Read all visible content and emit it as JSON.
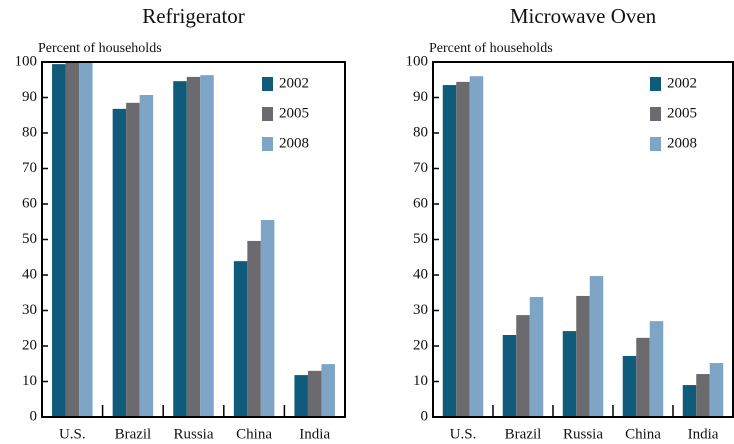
{
  "chart_data": [
    {
      "type": "bar",
      "title": "Refrigerator",
      "y_label": "Percent of households",
      "categories": [
        "U.S.",
        "Brazil",
        "Russia",
        "China",
        "India"
      ],
      "series": [
        {
          "name": "2002",
          "color": "#0f5b7b",
          "values": [
            99.4,
            86.8,
            94.6,
            43.9,
            11.8
          ]
        },
        {
          "name": "2005",
          "color": "#6b6b6f",
          "values": [
            100,
            88.5,
            95.8,
            49.6,
            13
          ]
        },
        {
          "name": "2008",
          "color": "#7fa5c6",
          "values": [
            100,
            90.7,
            96.3,
            55.5,
            14.9
          ]
        }
      ],
      "ylim": [
        0,
        100
      ],
      "yticks": [
        0,
        10,
        20,
        30,
        40,
        50,
        60,
        70,
        80,
        90,
        100
      ],
      "legend": "upper right"
    },
    {
      "type": "bar",
      "title": "Microwave Oven",
      "y_label": "Percent of households",
      "categories": [
        "U.S.",
        "Brazil",
        "Russia",
        "China",
        "India"
      ],
      "series": [
        {
          "name": "2002",
          "color": "#0f5b7b",
          "values": [
            93.5,
            23.1,
            24.2,
            17.2,
            9
          ]
        },
        {
          "name": "2005",
          "color": "#6b6b6f",
          "values": [
            94.4,
            28.7,
            34.1,
            22.3,
            12.1
          ]
        },
        {
          "name": "2008",
          "color": "#7fa5c6",
          "values": [
            96,
            33.8,
            39.7,
            27,
            15.2
          ]
        }
      ],
      "ylim": [
        0,
        100
      ],
      "yticks": [
        0,
        10,
        20,
        30,
        40,
        50,
        60,
        70,
        80,
        90,
        100
      ],
      "legend": "upper right"
    }
  ]
}
